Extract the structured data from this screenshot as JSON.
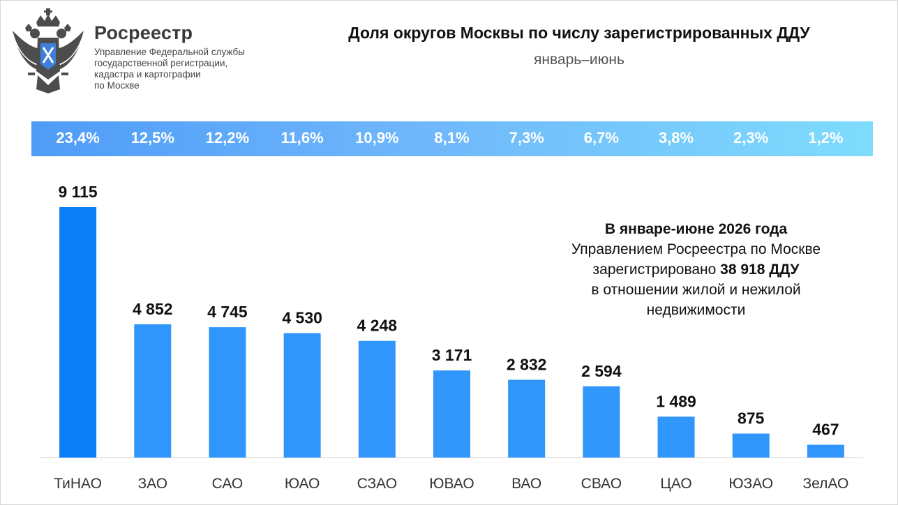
{
  "header": {
    "brand_name": "Росреестр",
    "brand_sub_lines": [
      "Управление Федеральной службы",
      "государственной регистрации,",
      "кадастра и картографии",
      "по Москве"
    ],
    "logo_icon": "double-headed-eagle-emblem-icon"
  },
  "colors": {
    "bar_top": "#0a7ef7",
    "bar": "#3096fb",
    "share_band_start": "#4f9cf8",
    "share_band_end": "#7edcfc"
  },
  "note": {
    "line1": "В январе-июне 2026 года",
    "line2": "Управлением Росреестра по Москве",
    "line3_prefix": "зарегистрировано ",
    "line3_bold": "38 918 ДДУ",
    "line4": "в отношении жилой и нежилой",
    "line5": "недвижимости"
  },
  "chart_data": {
    "type": "bar",
    "title": "Доля округов Москвы по числу зарегистрированных ДДУ",
    "subtitle": "январь–июнь",
    "categories": [
      "ТиНАО",
      "ЗАО",
      "САО",
      "ЮАО",
      "СЗАО",
      "ЮВАО",
      "ВАО",
      "СВАО",
      "ЦАО",
      "ЮЗАО",
      "ЗелАО"
    ],
    "values": [
      9115,
      4852,
      4745,
      4530,
      4248,
      3171,
      2832,
      2594,
      1489,
      875,
      467
    ],
    "value_labels": [
      "9 115",
      "4 852",
      "4 745",
      "4 530",
      "4 248",
      "3 171",
      "2 832",
      "2 594",
      "1 489",
      "875",
      "467"
    ],
    "shares": [
      "23,4%",
      "12,5%",
      "12,2%",
      "11,6%",
      "10,9%",
      "8,1%",
      "7,3%",
      "6,7%",
      "3,8%",
      "2,3%",
      "1,2%"
    ],
    "xlabel": "",
    "ylabel": "",
    "ylim": [
      0,
      9115
    ],
    "grid": false,
    "legend": "none"
  }
}
